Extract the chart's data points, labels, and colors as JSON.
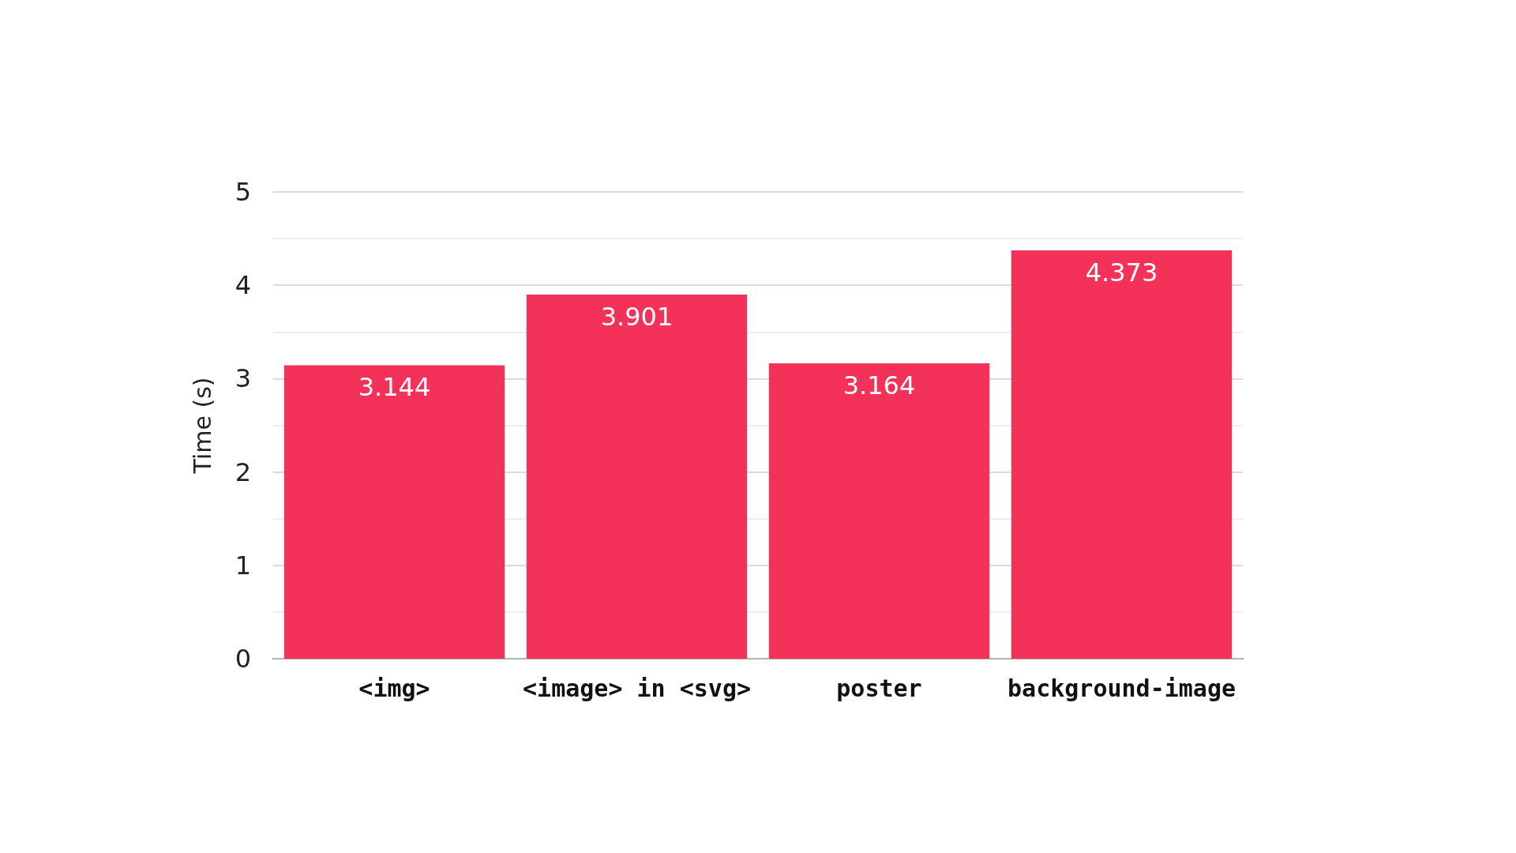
{
  "chart_data": {
    "type": "bar",
    "ylabel": "Time (s)",
    "categories": [
      "<img>",
      "<image> in <svg>",
      "poster",
      "background-image"
    ],
    "values": [
      3.144,
      3.901,
      3.164,
      4.373
    ],
    "color": "#f43158",
    "ylim": [
      0,
      5
    ],
    "yticks": [
      0,
      {
        "value": 0.5,
        "label": null
      },
      1,
      {
        "value": 1.5,
        "label": null
      },
      2,
      {
        "value": 2.5,
        "label": null
      },
      3,
      {
        "value": 3.5,
        "label": null
      },
      4,
      {
        "value": 4.5,
        "label": null
      },
      5
    ],
    "grid": "y",
    "data_labels": true
  }
}
